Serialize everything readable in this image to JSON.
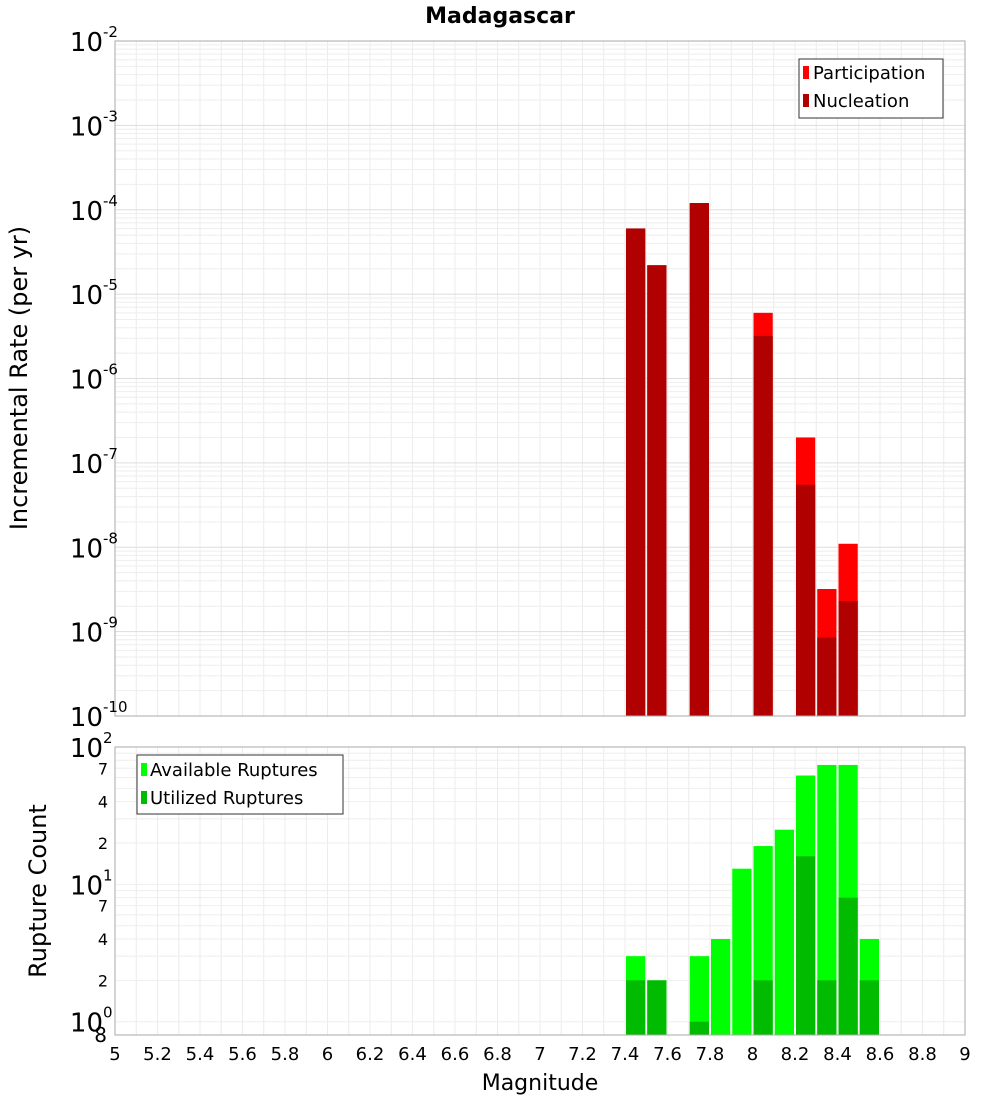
{
  "chart_data": [
    {
      "type": "bar",
      "title": "Madagascar",
      "ylabel": "Incremental Rate (per yr)",
      "xlabel": "",
      "y_scale": "log",
      "ylim": [
        1e-10,
        0.01
      ],
      "xlim": [
        5,
        9
      ],
      "y_tick_bases": [
        "10",
        "10",
        "10",
        "10",
        "10",
        "10",
        "10",
        "10",
        "10"
      ],
      "y_tick_exponents": [
        "-10",
        "-9",
        "-8",
        "-7",
        "-6",
        "-5",
        "-4",
        "-3",
        "-2"
      ],
      "grid": true,
      "legend_position": "top-right",
      "x": [
        7.45,
        7.55,
        7.75,
        8.05,
        8.25,
        8.35,
        8.45
      ],
      "series": [
        {
          "name": "Participation",
          "color": "#ff0000",
          "values": [
            6e-05,
            2.2e-05,
            0.00012,
            6e-06,
            2e-07,
            3.2e-09,
            1.1e-08
          ]
        },
        {
          "name": "Nucleation",
          "color": "#b00000",
          "values": [
            6e-05,
            2.2e-05,
            0.00012,
            3.2e-06,
            5.5e-08,
            8.5e-10,
            2.3e-09
          ]
        }
      ]
    },
    {
      "type": "bar",
      "title": "",
      "ylabel": "Rupture Count",
      "xlabel": "Magnitude",
      "y_scale": "log",
      "ylim": [
        0.8,
        100
      ],
      "xlim": [
        5,
        9
      ],
      "x_ticks": [
        "5",
        "5.2",
        "5.4",
        "5.6",
        "5.8",
        "6",
        "6.2",
        "6.4",
        "6.6",
        "6.8",
        "7",
        "7.2",
        "7.4",
        "7.6",
        "7.8",
        "8",
        "8.2",
        "8.4",
        "8.6",
        "8.8",
        "9"
      ],
      "y_major_tick_bases": [
        "10",
        "10",
        "10"
      ],
      "y_major_tick_exponents": [
        "0",
        "1",
        "2"
      ],
      "y_minor_tick_labels": [
        "8",
        "2",
        "4",
        "7",
        "2",
        "4",
        "7"
      ],
      "grid": true,
      "legend_position": "top-left",
      "x": [
        7.45,
        7.55,
        7.75,
        7.85,
        7.95,
        8.05,
        8.15,
        8.25,
        8.35,
        8.45,
        8.55
      ],
      "series": [
        {
          "name": "Available Ruptures",
          "color": "#00ff00",
          "values": [
            3,
            2,
            3,
            4,
            13,
            19,
            25,
            62,
            74,
            74,
            4
          ]
        },
        {
          "name": "Utilized Ruptures",
          "color": "#00bb00",
          "values": [
            2,
            2,
            1,
            0,
            0,
            2,
            0,
            16,
            2,
            8,
            2
          ]
        }
      ]
    }
  ]
}
